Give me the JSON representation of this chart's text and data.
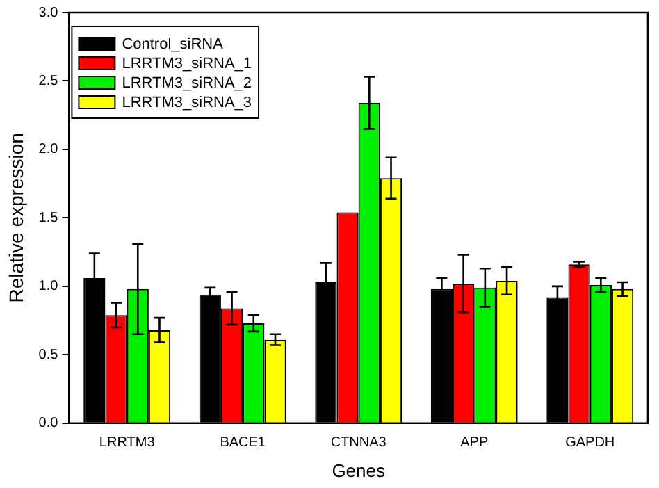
{
  "chart_data": {
    "type": "bar",
    "xlabel": "Genes",
    "ylabel": "Relative expression",
    "categories": [
      "LRRTM3",
      "BACE1",
      "CTNNA3",
      "APP",
      "GAPDH"
    ],
    "series": [
      {
        "name": "Control_siRNA",
        "color": "#000000",
        "values": [
          1.06,
          0.94,
          1.03,
          0.98,
          0.92
        ],
        "errors": [
          0.18,
          0.05,
          0.14,
          0.08,
          0.08
        ]
      },
      {
        "name": "LRRTM3_siRNA_1",
        "color": "#ff0000",
        "values": [
          0.79,
          0.84,
          1.54,
          1.02,
          1.16
        ],
        "errors": [
          0.09,
          0.12,
          null,
          0.21,
          0.02
        ]
      },
      {
        "name": "LRRTM3_siRNA_2",
        "color": "#00ee00",
        "values": [
          0.98,
          0.73,
          2.34,
          0.99,
          1.01
        ],
        "errors": [
          0.33,
          0.06,
          0.19,
          0.14,
          0.05
        ]
      },
      {
        "name": "LRRTM3_siRNA_3",
        "color": "#ffff00",
        "values": [
          0.68,
          0.61,
          1.79,
          1.04,
          0.98
        ],
        "errors": [
          0.09,
          0.04,
          0.15,
          0.1,
          0.05
        ]
      }
    ],
    "ylim": [
      0,
      3
    ],
    "yticks": [
      {
        "value": 0,
        "label": "0.0"
      },
      {
        "value": 0.5,
        "label": "0.5"
      },
      {
        "value": 1,
        "label": "1.0"
      },
      {
        "value": 1.5,
        "label": "1.5"
      },
      {
        "value": 2,
        "label": "2.0"
      },
      {
        "value": 2.5,
        "label": "2.5"
      },
      {
        "value": 3,
        "label": "3.0"
      }
    ],
    "grid": false,
    "legend": "top left"
  }
}
